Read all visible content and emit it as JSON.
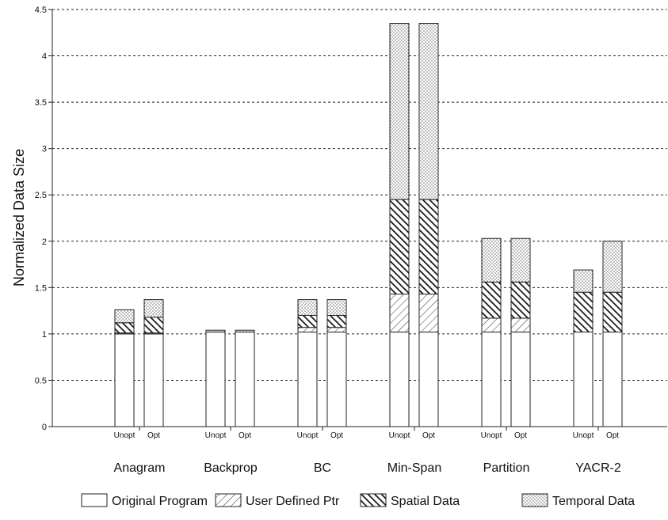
{
  "chart_data": {
    "type": "bar",
    "stacked": true,
    "ylabel": "Normalized Data Size",
    "xlabel": "",
    "ylim": [
      0,
      4.5
    ],
    "yticks": [
      {
        "value": 0,
        "label": "0"
      },
      {
        "value": 0.5,
        "label": "0.5"
      },
      {
        "value": 1,
        "label": "1"
      },
      {
        "value": 1.5,
        "label": "1.5"
      },
      {
        "value": 2,
        "label": "2"
      },
      {
        "value": 2.5,
        "label": "2.5"
      },
      {
        "value": 3,
        "label": "3"
      },
      {
        "value": 3.5,
        "label": "3.5"
      },
      {
        "value": 4,
        "label": "4"
      },
      {
        "value": 4.5,
        "label": "4.5"
      }
    ],
    "grid": "horizontal dashed",
    "legend_position": "bottom",
    "groups": [
      "Anagram",
      "Backprop",
      "BC",
      "Min-Span",
      "Partition",
      "YACR-2"
    ],
    "bar_labels": [
      "Unopt",
      "Opt"
    ],
    "categories": [
      "Anagram Unopt",
      "Anagram Opt",
      "Backprop Unopt",
      "Backprop Opt",
      "BC Unopt",
      "BC Opt",
      "Min-Span Unopt",
      "Min-Span Opt",
      "Partition Unopt",
      "Partition Opt",
      "YACR-2 Unopt",
      "YACR-2 Opt"
    ],
    "series": [
      {
        "name": "Original Program",
        "pattern": "blank",
        "values": [
          1.0,
          1.0,
          1.02,
          1.02,
          1.02,
          1.02,
          1.02,
          1.02,
          1.02,
          1.02,
          1.02,
          1.02
        ]
      },
      {
        "name": "User Defined Ptr",
        "pattern": "hatch-light",
        "values": [
          0.01,
          0.01,
          0.0,
          0.0,
          0.05,
          0.05,
          0.41,
          0.41,
          0.15,
          0.15,
          0.0,
          0.0
        ]
      },
      {
        "name": "Spatial Data",
        "pattern": "hatch-dark",
        "values": [
          0.11,
          0.17,
          0.0,
          0.0,
          0.13,
          0.13,
          1.02,
          1.02,
          0.39,
          0.39,
          0.43,
          0.43
        ]
      },
      {
        "name": "Temporal Data",
        "pattern": "dots",
        "values": [
          0.14,
          0.19,
          0.02,
          0.02,
          0.17,
          0.17,
          1.9,
          1.9,
          0.47,
          0.47,
          0.24,
          0.55
        ]
      }
    ]
  }
}
